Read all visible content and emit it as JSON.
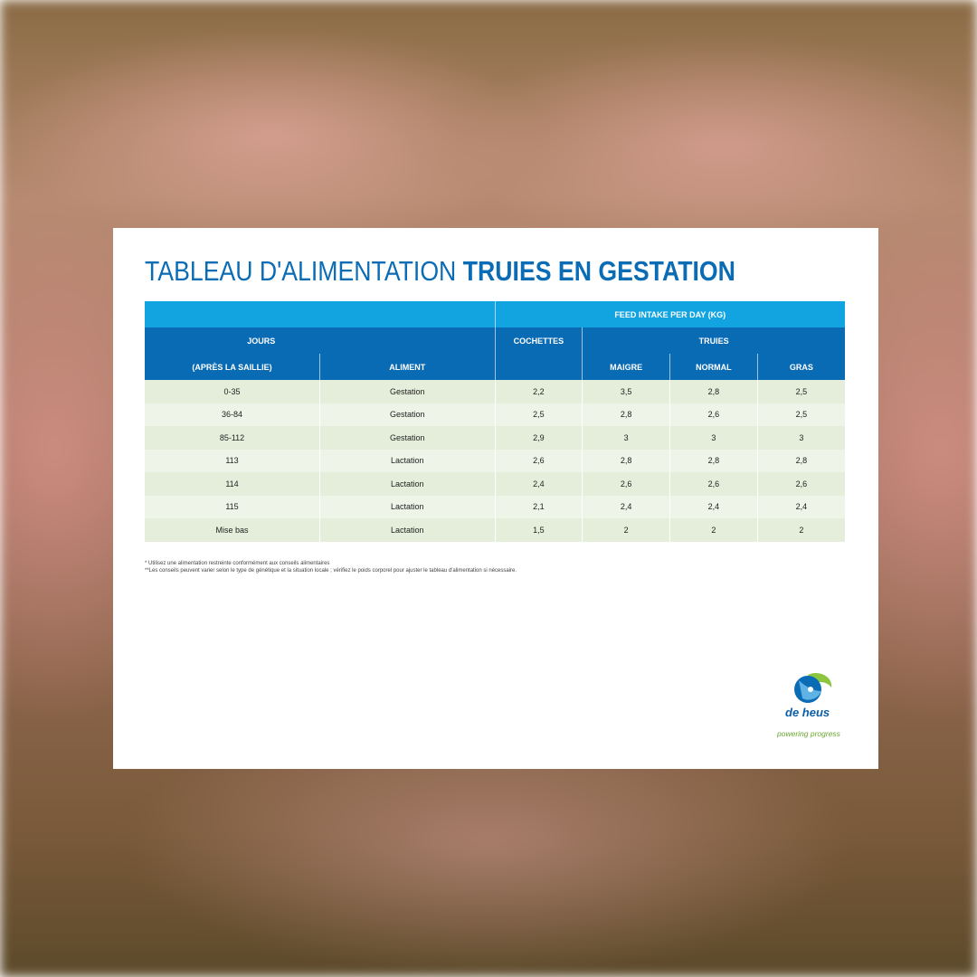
{
  "title": {
    "light": "TABLEAU D'ALIMENTATION",
    "bold": "TRUIES EN GESTATION"
  },
  "table": {
    "header": {
      "group": "FEED INTAKE PER DAY (KG)",
      "jours": "JOURS",
      "cochettes": "COCHETTES",
      "truies": "TRUIES",
      "apres": "(APRÈS LA SAILLIE)",
      "aliment": "ALIMENT",
      "maigre": "MAIGRE",
      "normal": "NORMAL",
      "gras": "GRAS"
    },
    "rows": [
      [
        "0-35",
        "Gestation",
        "2,2",
        "3,5",
        "2,8",
        "2,5"
      ],
      [
        "36-84",
        "Gestation",
        "2,5",
        "2,8",
        "2,6",
        "2,5"
      ],
      [
        "85-112",
        "Gestation",
        "2,9",
        "3",
        "3",
        "3"
      ],
      [
        "113",
        "Lactation",
        "2,6",
        "2,8",
        "2,8",
        "2,8"
      ],
      [
        "114",
        "Lactation",
        "2,4",
        "2,6",
        "2,6",
        "2,6"
      ],
      [
        "115",
        "Lactation",
        "2,1",
        "2,4",
        "2,4",
        "2,4"
      ],
      [
        "Mise bas",
        "Lactation",
        "1,5",
        "2",
        "2",
        "2"
      ]
    ]
  },
  "footnotes": [
    "* Utilisez une alimentation restreinte conformément aux conseils alimentaires",
    "**Les conseils peuvent varier selon le type de génétique et la situation locale ; vérifiez le poids corporel pour ajuster le tableau d'alimentation si nécessaire."
  ],
  "logo": {
    "brand": "de heus",
    "tagline": "powering progress"
  }
}
